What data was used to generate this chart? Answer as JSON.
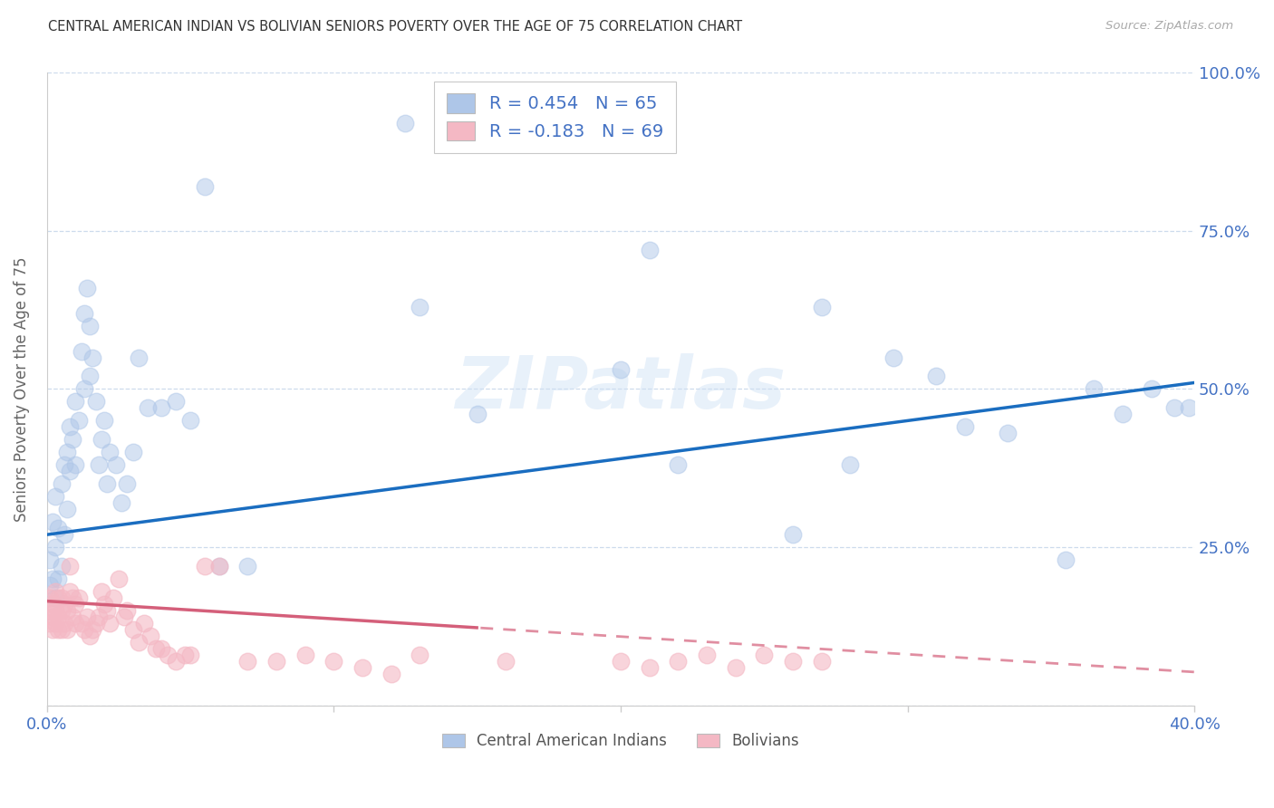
{
  "title": "CENTRAL AMERICAN INDIAN VS BOLIVIAN SENIORS POVERTY OVER THE AGE OF 75 CORRELATION CHART",
  "source": "Source: ZipAtlas.com",
  "ylabel": "Seniors Poverty Over the Age of 75",
  "xlim": [
    0.0,
    0.4
  ],
  "ylim": [
    0.0,
    1.0
  ],
  "blue_color": "#aec6e8",
  "pink_color": "#f4b8c4",
  "trend_blue": "#1a6dc0",
  "trend_pink": "#d45f7a",
  "legend_R1": "R = 0.454",
  "legend_N1": "N = 65",
  "legend_R2": "R = -0.183",
  "legend_N2": "N = 69",
  "legend1_label": "Central American Indians",
  "legend2_label": "Bolivians",
  "watermark": "ZIPatlas",
  "blue_intercept": 0.27,
  "blue_slope": 0.6,
  "pink_intercept": 0.165,
  "pink_slope": -0.28,
  "blue_x": [
    0.001,
    0.001,
    0.002,
    0.002,
    0.003,
    0.003,
    0.003,
    0.004,
    0.004,
    0.005,
    0.005,
    0.006,
    0.006,
    0.007,
    0.007,
    0.008,
    0.008,
    0.009,
    0.01,
    0.01,
    0.011,
    0.012,
    0.013,
    0.013,
    0.014,
    0.015,
    0.015,
    0.016,
    0.017,
    0.018,
    0.019,
    0.02,
    0.021,
    0.022,
    0.024,
    0.026,
    0.028,
    0.03,
    0.032,
    0.035,
    0.04,
    0.045,
    0.05,
    0.06,
    0.07,
    0.13,
    0.15,
    0.2,
    0.22,
    0.26,
    0.28,
    0.295,
    0.31,
    0.32,
    0.335,
    0.355,
    0.365,
    0.375,
    0.385,
    0.393,
    0.398,
    0.055,
    0.125,
    0.21,
    0.27
  ],
  "blue_y": [
    0.19,
    0.23,
    0.2,
    0.29,
    0.17,
    0.25,
    0.33,
    0.2,
    0.28,
    0.22,
    0.35,
    0.27,
    0.38,
    0.31,
    0.4,
    0.37,
    0.44,
    0.42,
    0.48,
    0.38,
    0.45,
    0.56,
    0.62,
    0.5,
    0.66,
    0.52,
    0.6,
    0.55,
    0.48,
    0.38,
    0.42,
    0.45,
    0.35,
    0.4,
    0.38,
    0.32,
    0.35,
    0.4,
    0.55,
    0.47,
    0.47,
    0.48,
    0.45,
    0.22,
    0.22,
    0.63,
    0.46,
    0.53,
    0.38,
    0.27,
    0.38,
    0.55,
    0.52,
    0.44,
    0.43,
    0.23,
    0.5,
    0.46,
    0.5,
    0.47,
    0.47,
    0.82,
    0.92,
    0.72,
    0.63
  ],
  "pink_x": [
    0.001,
    0.001,
    0.001,
    0.002,
    0.002,
    0.002,
    0.003,
    0.003,
    0.003,
    0.004,
    0.004,
    0.004,
    0.005,
    0.005,
    0.005,
    0.006,
    0.006,
    0.007,
    0.007,
    0.008,
    0.008,
    0.009,
    0.009,
    0.01,
    0.01,
    0.011,
    0.012,
    0.013,
    0.014,
    0.015,
    0.016,
    0.017,
    0.018,
    0.019,
    0.02,
    0.021,
    0.022,
    0.023,
    0.025,
    0.027,
    0.028,
    0.03,
    0.032,
    0.034,
    0.036,
    0.038,
    0.04,
    0.042,
    0.045,
    0.048,
    0.05,
    0.055,
    0.06,
    0.07,
    0.08,
    0.09,
    0.1,
    0.11,
    0.12,
    0.13,
    0.16,
    0.2,
    0.21,
    0.22,
    0.23,
    0.24,
    0.25,
    0.26,
    0.27
  ],
  "pink_y": [
    0.17,
    0.15,
    0.13,
    0.16,
    0.14,
    0.12,
    0.18,
    0.15,
    0.13,
    0.17,
    0.14,
    0.12,
    0.17,
    0.15,
    0.12,
    0.16,
    0.13,
    0.15,
    0.12,
    0.22,
    0.18,
    0.17,
    0.14,
    0.16,
    0.13,
    0.17,
    0.13,
    0.12,
    0.14,
    0.11,
    0.12,
    0.13,
    0.14,
    0.18,
    0.16,
    0.15,
    0.13,
    0.17,
    0.2,
    0.14,
    0.15,
    0.12,
    0.1,
    0.13,
    0.11,
    0.09,
    0.09,
    0.08,
    0.07,
    0.08,
    0.08,
    0.22,
    0.22,
    0.07,
    0.07,
    0.08,
    0.07,
    0.06,
    0.05,
    0.08,
    0.07,
    0.07,
    0.06,
    0.07,
    0.08,
    0.06,
    0.08,
    0.07,
    0.07
  ]
}
